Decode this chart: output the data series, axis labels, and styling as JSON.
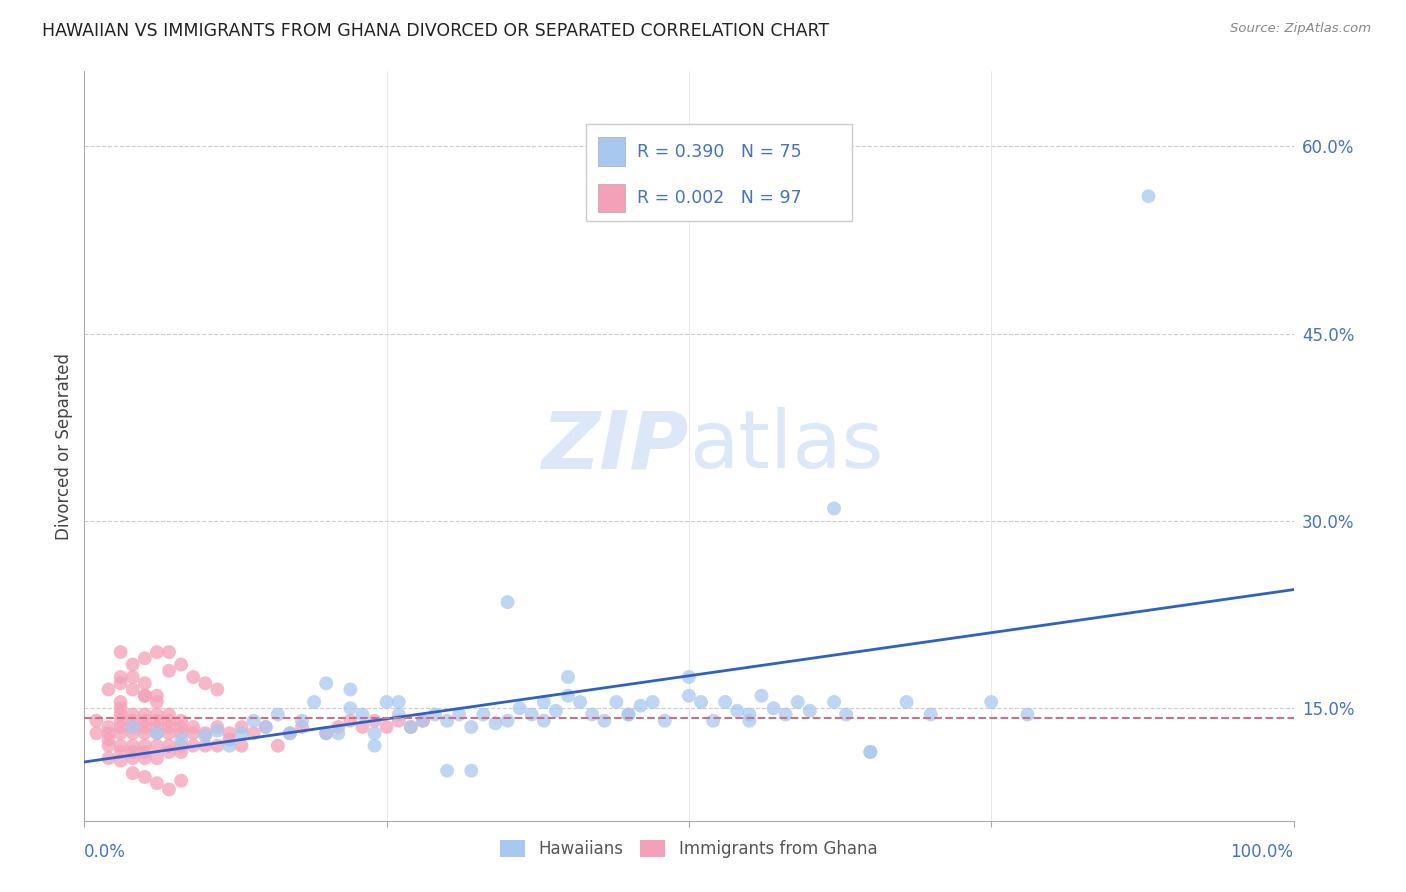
{
  "title": "HAWAIIAN VS IMMIGRANTS FROM GHANA DIVORCED OR SEPARATED CORRELATION CHART",
  "source": "Source: ZipAtlas.com",
  "ylabel": "Divorced or Separated",
  "ytick_values": [
    0.15,
    0.3,
    0.45,
    0.6
  ],
  "ytick_labels": [
    "15.0%",
    "30.0%",
    "45.0%",
    "60.0%"
  ],
  "xlim": [
    0.0,
    1.0
  ],
  "ylim": [
    0.06,
    0.66
  ],
  "blue_color": "#a8c8f0",
  "pink_color": "#f4a0b8",
  "blue_line_color": "#3060c0",
  "pink_line_color": "#d07088",
  "watermark_color": "#dce8f8",
  "blue_line_y0": 0.107,
  "blue_line_y1": 0.245,
  "pink_line_y": 0.142,
  "blue_scatter_x": [
    0.04,
    0.06,
    0.08,
    0.1,
    0.11,
    0.12,
    0.13,
    0.14,
    0.15,
    0.16,
    0.17,
    0.18,
    0.19,
    0.2,
    0.21,
    0.22,
    0.23,
    0.24,
    0.25,
    0.26,
    0.27,
    0.28,
    0.29,
    0.3,
    0.31,
    0.32,
    0.33,
    0.34,
    0.35,
    0.36,
    0.37,
    0.38,
    0.39,
    0.4,
    0.41,
    0.42,
    0.43,
    0.44,
    0.45,
    0.46,
    0.47,
    0.48,
    0.5,
    0.51,
    0.52,
    0.53,
    0.54,
    0.55,
    0.56,
    0.57,
    0.58,
    0.59,
    0.6,
    0.62,
    0.63,
    0.65,
    0.68,
    0.7,
    0.75,
    0.78,
    0.2,
    0.22,
    0.24,
    0.26,
    0.3,
    0.32,
    0.35,
    0.38,
    0.4,
    0.45,
    0.5,
    0.55,
    0.62,
    0.88,
    0.65
  ],
  "blue_scatter_y": [
    0.135,
    0.13,
    0.125,
    0.128,
    0.132,
    0.12,
    0.13,
    0.14,
    0.135,
    0.145,
    0.13,
    0.14,
    0.155,
    0.13,
    0.13,
    0.15,
    0.145,
    0.13,
    0.155,
    0.145,
    0.135,
    0.14,
    0.145,
    0.14,
    0.145,
    0.135,
    0.145,
    0.138,
    0.14,
    0.15,
    0.145,
    0.14,
    0.148,
    0.16,
    0.155,
    0.145,
    0.14,
    0.155,
    0.145,
    0.152,
    0.155,
    0.14,
    0.16,
    0.155,
    0.14,
    0.155,
    0.148,
    0.14,
    0.16,
    0.15,
    0.145,
    0.155,
    0.148,
    0.155,
    0.145,
    0.115,
    0.155,
    0.145,
    0.155,
    0.145,
    0.17,
    0.165,
    0.12,
    0.155,
    0.1,
    0.1,
    0.235,
    0.155,
    0.175,
    0.145,
    0.175,
    0.145,
    0.31,
    0.56,
    0.115
  ],
  "pink_scatter_x": [
    0.01,
    0.01,
    0.02,
    0.02,
    0.02,
    0.02,
    0.02,
    0.03,
    0.03,
    0.03,
    0.03,
    0.03,
    0.03,
    0.03,
    0.03,
    0.04,
    0.04,
    0.04,
    0.04,
    0.04,
    0.04,
    0.04,
    0.05,
    0.05,
    0.05,
    0.05,
    0.05,
    0.05,
    0.05,
    0.05,
    0.06,
    0.06,
    0.06,
    0.06,
    0.06,
    0.06,
    0.07,
    0.07,
    0.07,
    0.07,
    0.07,
    0.07,
    0.08,
    0.08,
    0.08,
    0.08,
    0.08,
    0.09,
    0.09,
    0.09,
    0.1,
    0.1,
    0.11,
    0.11,
    0.12,
    0.12,
    0.13,
    0.13,
    0.14,
    0.15,
    0.16,
    0.17,
    0.18,
    0.2,
    0.21,
    0.22,
    0.23,
    0.24,
    0.25,
    0.26,
    0.27,
    0.28,
    0.03,
    0.04,
    0.05,
    0.06,
    0.07,
    0.08,
    0.09,
    0.1,
    0.11,
    0.03,
    0.04,
    0.05,
    0.06,
    0.02,
    0.03,
    0.04,
    0.05,
    0.06,
    0.07,
    0.03,
    0.04,
    0.05,
    0.06,
    0.07,
    0.08
  ],
  "pink_scatter_y": [
    0.13,
    0.14,
    0.13,
    0.135,
    0.12,
    0.125,
    0.11,
    0.13,
    0.135,
    0.14,
    0.145,
    0.15,
    0.155,
    0.12,
    0.115,
    0.13,
    0.135,
    0.14,
    0.145,
    0.12,
    0.115,
    0.11,
    0.13,
    0.135,
    0.14,
    0.145,
    0.12,
    0.115,
    0.11,
    0.16,
    0.13,
    0.135,
    0.14,
    0.145,
    0.12,
    0.11,
    0.13,
    0.135,
    0.14,
    0.145,
    0.12,
    0.115,
    0.13,
    0.135,
    0.14,
    0.12,
    0.115,
    0.13,
    0.135,
    0.12,
    0.13,
    0.12,
    0.135,
    0.12,
    0.13,
    0.125,
    0.135,
    0.12,
    0.13,
    0.135,
    0.12,
    0.13,
    0.135,
    0.13,
    0.135,
    0.14,
    0.135,
    0.14,
    0.135,
    0.14,
    0.135,
    0.14,
    0.175,
    0.185,
    0.19,
    0.195,
    0.195,
    0.185,
    0.175,
    0.17,
    0.165,
    0.195,
    0.175,
    0.17,
    0.16,
    0.165,
    0.17,
    0.165,
    0.16,
    0.155,
    0.18,
    0.108,
    0.098,
    0.095,
    0.09,
    0.085,
    0.092
  ]
}
